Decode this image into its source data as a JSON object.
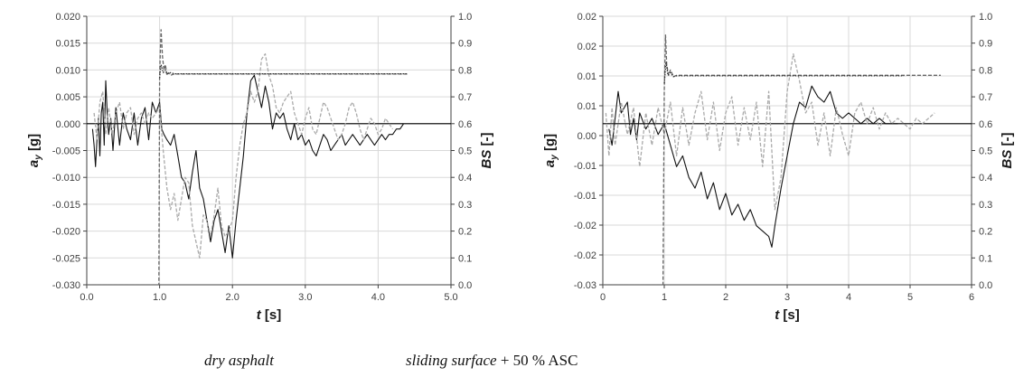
{
  "captions": {
    "left": "dry asphalt",
    "right_italic": "sliding surface",
    "right_plain": " + 50 % ASC"
  },
  "chart_data": [
    {
      "type": "line",
      "xlabel_main": "t",
      "xlabel_unit": " [s]",
      "ylabel_left_main": "a",
      "ylabel_left_sub": "y",
      "ylabel_left_unit": " [g]",
      "ylabel_right_main": "BS",
      "ylabel_right_unit": " [-]",
      "xlim": [
        0,
        5
      ],
      "x_ticks": [
        "0.0",
        "1.0",
        "2.0",
        "3.0",
        "4.0",
        "5.0"
      ],
      "ylim_left": [
        -0.03,
        0.02
      ],
      "y_left_ticks": [
        "-0.030",
        "-0.025",
        "-0.020",
        "-0.015",
        "-0.010",
        "-0.005",
        "0.000",
        "0.005",
        "0.010",
        "0.015",
        "0.020"
      ],
      "ylim_right": [
        0,
        1
      ],
      "y_right_ticks": [
        "0.0",
        "0.1",
        "0.2",
        "0.3",
        "0.4",
        "0.5",
        "0.6",
        "0.7",
        "0.8",
        "0.9",
        "1.0"
      ],
      "grid": true,
      "series": [
        {
          "axis": "left",
          "color": "#111111",
          "style": "solid",
          "x": [
            0.08,
            0.1,
            0.12,
            0.14,
            0.16,
            0.18,
            0.2,
            0.22,
            0.24,
            0.26,
            0.28,
            0.3,
            0.33,
            0.36,
            0.4,
            0.45,
            0.5,
            0.55,
            0.6,
            0.65,
            0.7,
            0.75,
            0.8,
            0.85,
            0.9,
            0.95,
            1.0,
            1.03,
            1.06,
            1.1,
            1.15,
            1.2,
            1.25,
            1.3,
            1.35,
            1.4,
            1.45,
            1.5,
            1.55,
            1.6,
            1.65,
            1.7,
            1.75,
            1.8,
            1.85,
            1.9,
            1.95,
            2.0,
            2.05,
            2.1,
            2.15,
            2.2,
            2.25,
            2.3,
            2.35,
            2.4,
            2.45,
            2.5,
            2.55,
            2.6,
            2.65,
            2.7,
            2.75,
            2.8,
            2.85,
            2.9,
            2.95,
            3.0,
            3.05,
            3.1,
            3.15,
            3.2,
            3.25,
            3.3,
            3.35,
            3.4,
            3.45,
            3.5,
            3.55,
            3.6,
            3.65,
            3.7,
            3.75,
            3.8,
            3.85,
            3.9,
            3.95,
            4.0,
            4.05,
            4.1,
            4.15,
            4.2,
            4.25,
            4.3,
            4.35
          ],
          "y": [
            -0.001,
            -0.004,
            -0.008,
            -0.003,
            0.001,
            -0.006,
            0.002,
            0.004,
            -0.004,
            0.008,
            0.002,
            -0.002,
            0.001,
            -0.005,
            0.003,
            -0.004,
            0.002,
            -0.001,
            -0.003,
            0.002,
            -0.004,
            0.001,
            0.003,
            -0.003,
            0.004,
            0.002,
            0.004,
            -0.001,
            -0.002,
            -0.003,
            -0.004,
            -0.002,
            -0.006,
            -0.01,
            -0.011,
            -0.014,
            -0.009,
            -0.005,
            -0.012,
            -0.014,
            -0.018,
            -0.022,
            -0.018,
            -0.016,
            -0.02,
            -0.024,
            -0.019,
            -0.025,
            -0.018,
            -0.012,
            -0.006,
            0.002,
            0.008,
            0.009,
            0.006,
            0.003,
            0.007,
            0.004,
            -0.001,
            0.002,
            0.001,
            0.002,
            -0.001,
            -0.003,
            0.0,
            -0.003,
            -0.002,
            -0.004,
            -0.003,
            -0.005,
            -0.006,
            -0.004,
            -0.002,
            -0.003,
            -0.005,
            -0.004,
            -0.003,
            -0.002,
            -0.004,
            -0.003,
            -0.002,
            -0.003,
            -0.004,
            -0.003,
            -0.002,
            -0.003,
            -0.004,
            -0.003,
            -0.002,
            -0.003,
            -0.002,
            -0.002,
            -0.001,
            -0.001,
            0.0
          ]
        },
        {
          "axis": "left",
          "color": "#aaaaaa",
          "style": "dashed",
          "x": [
            0.1,
            0.14,
            0.18,
            0.22,
            0.26,
            0.3,
            0.35,
            0.4,
            0.45,
            0.5,
            0.55,
            0.6,
            0.65,
            0.7,
            0.75,
            0.8,
            0.85,
            0.9,
            0.95,
            1.0,
            1.05,
            1.1,
            1.15,
            1.2,
            1.25,
            1.3,
            1.35,
            1.4,
            1.45,
            1.5,
            1.55,
            1.6,
            1.65,
            1.7,
            1.75,
            1.8,
            1.85,
            1.9,
            1.95,
            2.0,
            2.05,
            2.1,
            2.15,
            2.2,
            2.25,
            2.3,
            2.35,
            2.4,
            2.45,
            2.5,
            2.55,
            2.6,
            2.65,
            2.7,
            2.75,
            2.8,
            2.85,
            2.9,
            2.95,
            3.0,
            3.05,
            3.1,
            3.15,
            3.2,
            3.25,
            3.3,
            3.35,
            3.4,
            3.45,
            3.5,
            3.55,
            3.6,
            3.65,
            3.7,
            3.75,
            3.8,
            3.85,
            3.9,
            3.95,
            4.0,
            4.05,
            4.1,
            4.15,
            4.2
          ],
          "y": [
            0.002,
            -0.003,
            0.004,
            0.006,
            -0.002,
            0.003,
            -0.002,
            0.002,
            0.004,
            -0.001,
            0.002,
            0.003,
            -0.002,
            0.001,
            0.002,
            0.0,
            0.002,
            0.001,
            0.002,
            0.003,
            -0.005,
            -0.012,
            -0.016,
            -0.013,
            -0.018,
            -0.014,
            -0.01,
            -0.011,
            -0.019,
            -0.022,
            -0.025,
            -0.017,
            -0.018,
            -0.021,
            -0.017,
            -0.012,
            -0.019,
            -0.021,
            -0.02,
            -0.018,
            -0.01,
            -0.004,
            0.0,
            0.002,
            0.006,
            0.004,
            0.006,
            0.012,
            0.013,
            0.009,
            0.007,
            0.003,
            0.002,
            0.004,
            0.005,
            0.006,
            0.002,
            0.0,
            -0.002,
            0.001,
            0.003,
            -0.001,
            -0.002,
            0.001,
            0.004,
            0.003,
            0.001,
            -0.001,
            -0.003,
            -0.002,
            0.0,
            0.003,
            0.004,
            0.002,
            -0.001,
            -0.003,
            -0.001,
            0.001,
            0.0,
            -0.002,
            -0.001,
            0.001,
            0.0,
            -0.001
          ]
        },
        {
          "axis": "right",
          "color": "#666666",
          "style": "dashed",
          "x": [
            0.0,
            0.99,
            1.0,
            1.02,
            1.04,
            1.06,
            1.08,
            1.1,
            1.12,
            1.15,
            1.2,
            4.4
          ],
          "y": [
            0.0,
            0.0,
            0.78,
            0.95,
            0.85,
            0.8,
            0.82,
            0.78,
            0.79,
            0.78,
            0.785,
            0.785
          ]
        },
        {
          "axis": "right",
          "color": "#333333",
          "style": "dotted",
          "x": [
            1.0,
            1.02,
            1.05,
            1.08,
            1.1,
            1.15,
            1.2,
            4.4
          ],
          "y": [
            0.77,
            0.82,
            0.79,
            0.8,
            0.785,
            0.79,
            0.786,
            0.786
          ]
        }
      ]
    },
    {
      "type": "line",
      "xlabel_main": "t",
      "xlabel_unit": " [s]",
      "ylabel_left_main": "a",
      "ylabel_left_sub": "y",
      "ylabel_left_unit": " [g]",
      "ylabel_right_main": "BS",
      "ylabel_right_unit": " [-]",
      "xlim": [
        0,
        6
      ],
      "x_ticks": [
        "0",
        "1",
        "2",
        "3",
        "4",
        "5",
        "6"
      ],
      "ylim_left": [
        -0.03,
        0.02
      ],
      "y_left_ticks": [
        "-0.03",
        "-0.02",
        "-0.02",
        "-0.01",
        "-0.01",
        "0.00",
        "0.01",
        "0.01",
        "0.02",
        "0.02"
      ],
      "ylim_right": [
        0,
        1
      ],
      "y_right_ticks": [
        "0.0",
        "0.1",
        "0.2",
        "0.3",
        "0.4",
        "0.5",
        "0.6",
        "0.7",
        "0.8",
        "0.9",
        "1.0"
      ],
      "grid": true,
      "series": [
        {
          "axis": "left",
          "color": "#111111",
          "style": "solid",
          "x": [
            0.1,
            0.15,
            0.2,
            0.25,
            0.3,
            0.35,
            0.4,
            0.45,
            0.5,
            0.55,
            0.6,
            0.7,
            0.8,
            0.9,
            1.0,
            1.05,
            1.1,
            1.2,
            1.3,
            1.4,
            1.5,
            1.6,
            1.7,
            1.8,
            1.9,
            2.0,
            2.1,
            2.2,
            2.3,
            2.4,
            2.5,
            2.6,
            2.7,
            2.75,
            2.8,
            2.9,
            3.0,
            3.1,
            3.2,
            3.3,
            3.4,
            3.5,
            3.6,
            3.7,
            3.8,
            3.9,
            4.0,
            4.1,
            4.2,
            4.3,
            4.4,
            4.5,
            4.6,
            4.7,
            4.8
          ],
          "y": [
            -0.001,
            -0.004,
            0.001,
            0.006,
            0.002,
            0.003,
            0.004,
            -0.002,
            0.001,
            -0.003,
            0.002,
            -0.001,
            0.001,
            -0.002,
            0.0,
            -0.002,
            -0.004,
            -0.008,
            -0.006,
            -0.01,
            -0.012,
            -0.009,
            -0.014,
            -0.011,
            -0.016,
            -0.013,
            -0.017,
            -0.015,
            -0.018,
            -0.016,
            -0.019,
            -0.02,
            -0.021,
            -0.023,
            -0.019,
            -0.012,
            -0.006,
            0.0,
            0.004,
            0.003,
            0.007,
            0.005,
            0.004,
            0.006,
            0.002,
            0.001,
            0.002,
            0.001,
            0.0,
            0.001,
            0.0,
            0.001,
            0.0,
            0.0,
            0.0
          ]
        },
        {
          "axis": "left",
          "color": "#aaaaaa",
          "style": "dashed",
          "x": [
            0.05,
            0.1,
            0.15,
            0.2,
            0.3,
            0.4,
            0.5,
            0.6,
            0.7,
            0.8,
            0.9,
            1.0,
            1.1,
            1.2,
            1.3,
            1.4,
            1.5,
            1.6,
            1.7,
            1.8,
            1.9,
            2.0,
            2.1,
            2.2,
            2.3,
            2.4,
            2.5,
            2.6,
            2.7,
            2.8,
            2.9,
            3.0,
            3.1,
            3.2,
            3.3,
            3.4,
            3.5,
            3.6,
            3.7,
            3.8,
            3.9,
            4.0,
            4.1,
            4.2,
            4.3,
            4.4,
            4.5,
            4.6,
            4.7,
            4.8,
            4.9,
            5.0,
            5.1,
            5.2,
            5.3,
            5.4
          ],
          "y": [
            0.002,
            -0.006,
            0.003,
            -0.004,
            0.004,
            -0.002,
            0.003,
            -0.008,
            0.002,
            -0.004,
            0.003,
            -0.002,
            0.004,
            -0.006,
            0.003,
            -0.004,
            0.002,
            0.006,
            -0.003,
            0.004,
            -0.005,
            0.002,
            0.005,
            -0.004,
            0.003,
            -0.003,
            0.004,
            -0.008,
            0.006,
            -0.016,
            -0.01,
            0.006,
            0.013,
            0.008,
            0.002,
            0.004,
            -0.004,
            0.002,
            -0.006,
            0.003,
            -0.002,
            -0.006,
            0.002,
            0.004,
            0.0,
            0.003,
            -0.001,
            0.002,
            0.0,
            0.001,
            0.0,
            -0.001,
            0.001,
            0.0,
            0.001,
            0.002
          ]
        },
        {
          "axis": "right",
          "color": "#666666",
          "style": "dashed",
          "x": [
            0.0,
            0.98,
            1.0,
            1.02,
            1.04,
            1.07,
            1.1,
            1.15,
            1.2,
            5.5
          ],
          "y": [
            0.0,
            0.0,
            0.72,
            0.93,
            0.82,
            0.78,
            0.8,
            0.775,
            0.78,
            0.78
          ]
        },
        {
          "axis": "right",
          "color": "#333333",
          "style": "dotted",
          "x": [
            1.0,
            1.03,
            1.06,
            1.1,
            1.15,
            1.2,
            4.9
          ],
          "y": [
            0.75,
            0.83,
            0.78,
            0.79,
            0.775,
            0.778,
            0.778
          ]
        }
      ]
    }
  ]
}
